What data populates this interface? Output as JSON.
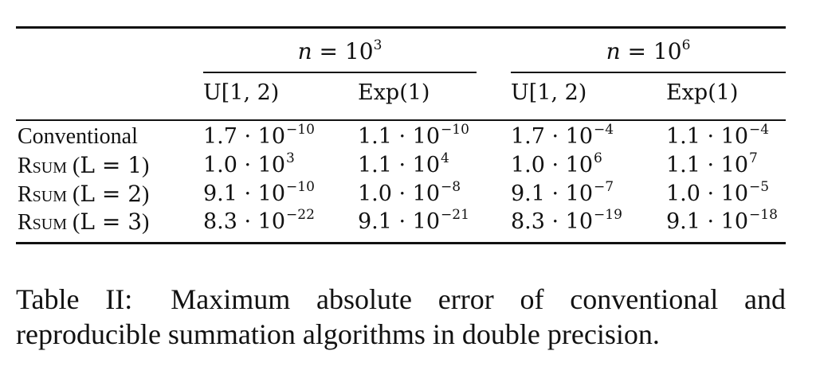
{
  "table": {
    "groups": [
      {
        "var": "n",
        "op": " = ",
        "base": "10",
        "exp": "3"
      },
      {
        "var": "n",
        "op": " = ",
        "base": "10",
        "exp": "6"
      }
    ],
    "subheaders": [
      "U[1, 2)",
      "Exp(1)",
      "U[1, 2)",
      "Exp(1)"
    ],
    "rows": [
      {
        "label_main": "Conventional",
        "label_arg": "",
        "cells": [
          {
            "mant": "1.7 · 10",
            "exp": "−10"
          },
          {
            "mant": "1.1 · 10",
            "exp": "−10"
          },
          {
            "mant": "1.7 · 10",
            "exp": "−4"
          },
          {
            "mant": "1.1 · 10",
            "exp": "−4"
          }
        ]
      },
      {
        "label_main": "Rsum",
        "label_arg": "L = 1",
        "cells": [
          {
            "mant": "1.0 · 10",
            "exp": "3"
          },
          {
            "mant": "1.1 · 10",
            "exp": "4"
          },
          {
            "mant": "1.0 · 10",
            "exp": "6"
          },
          {
            "mant": "1.1 · 10",
            "exp": "7"
          }
        ]
      },
      {
        "label_main": "Rsum",
        "label_arg": "L = 2",
        "cells": [
          {
            "mant": "9.1 · 10",
            "exp": "−10"
          },
          {
            "mant": "1.0 · 10",
            "exp": "−8"
          },
          {
            "mant": "9.1 · 10",
            "exp": "−7"
          },
          {
            "mant": "1.0 · 10",
            "exp": "−5"
          }
        ]
      },
      {
        "label_main": "Rsum",
        "label_arg": "L = 3",
        "cells": [
          {
            "mant": "8.3 · 10",
            "exp": "−22"
          },
          {
            "mant": "9.1 · 10",
            "exp": "−21"
          },
          {
            "mant": "8.3 · 10",
            "exp": "−19"
          },
          {
            "mant": "9.1 · 10",
            "exp": "−18"
          }
        ]
      }
    ]
  },
  "caption": {
    "label": "Table II:",
    "text": "Maximum absolute error of conventional and reproducible summation algorithms in double precision."
  }
}
